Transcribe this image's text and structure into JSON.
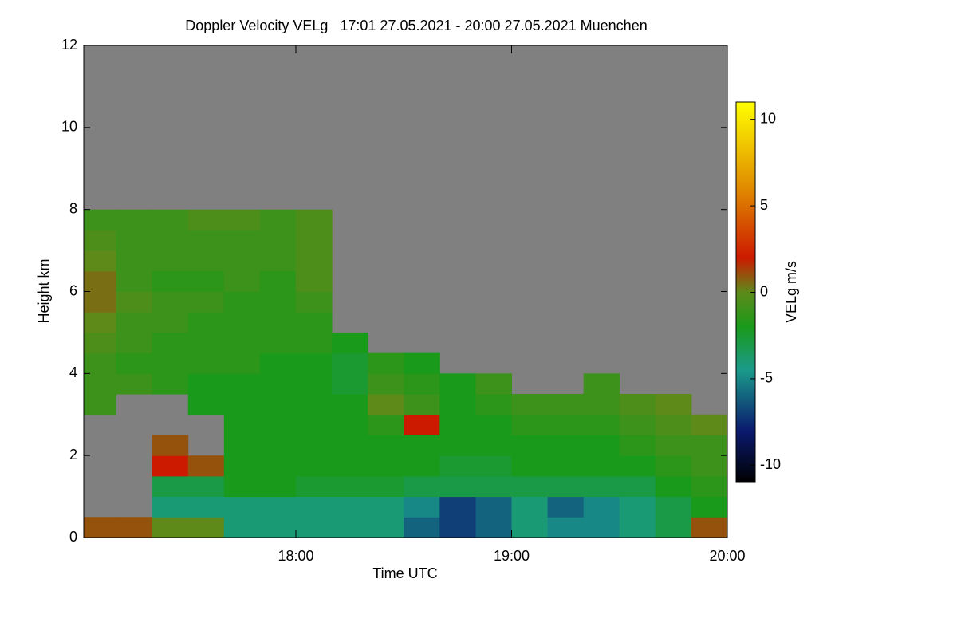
{
  "chart_data": {
    "type": "heatmap",
    "title": "Doppler Velocity VELg   17:01 27.05.2021 - 20:00 27.05.2021 Muenchen",
    "x_label": "Time UTC",
    "y_label": "Height km",
    "xlim": [
      17.0167,
      20.0
    ],
    "xticks": [
      {
        "value": 18,
        "label": "18:00"
      },
      {
        "value": 19,
        "label": "19:00"
      },
      {
        "value": 20,
        "label": "20:00"
      }
    ],
    "ylim": [
      0,
      12
    ],
    "yticks": [
      0,
      2,
      4,
      6,
      8,
      10,
      12
    ],
    "x": [
      17.0833,
      17.25,
      17.4167,
      17.5833,
      17.75,
      17.9167,
      18.0833,
      18.25,
      18.4167,
      18.5833,
      18.75,
      18.9167,
      19.0833,
      19.25,
      19.4167,
      19.5833,
      19.75,
      19.9167
    ],
    "y": [
      0.25,
      0.75,
      1.25,
      1.75,
      2.25,
      2.75,
      3.25,
      3.75,
      4.25,
      4.75,
      5.25,
      5.75,
      6.25,
      6.75,
      7.25,
      7.75,
      8.25
    ],
    "values": [
      [
        1,
        null,
        null,
        null,
        null,
        null,
        -1,
        -1,
        -1,
        -0.5,
        0,
        0.5,
        0.5,
        0,
        -0.5,
        -1,
        null
      ],
      [
        1,
        null,
        null,
        null,
        null,
        null,
        null,
        -1,
        -1.5,
        -1,
        -1,
        -0.5,
        -1,
        -1,
        -1,
        -1,
        null
      ],
      [
        0,
        -4,
        -3,
        2,
        1,
        null,
        null,
        -1.5,
        -1.5,
        -1.5,
        -1,
        -1,
        -1.5,
        -1,
        -1,
        -1,
        null
      ],
      [
        0,
        -4,
        -3,
        1,
        null,
        null,
        -2,
        -2,
        -1.5,
        -1.5,
        -1.5,
        -1,
        -1.5,
        -1,
        -1,
        -0.5,
        null
      ],
      [
        -4,
        -4,
        -2,
        -2,
        -2,
        -2,
        -2,
        -2,
        -1.5,
        -1.5,
        -1.5,
        -1.5,
        -1,
        -1,
        -1,
        -0.5,
        null
      ],
      [
        -4,
        -4,
        -2,
        -2,
        -2,
        -2,
        -2,
        -2,
        -2,
        -1.5,
        -1.5,
        -1.5,
        -1.5,
        -1,
        -1,
        -1,
        null
      ],
      [
        -4,
        -4,
        -2.5,
        -2,
        -2,
        -2,
        -2,
        -2,
        -2,
        -1.5,
        -1.5,
        -1,
        -0.5,
        -0.5,
        -0.5,
        -0.5,
        null
      ],
      [
        -4,
        -4,
        -2.5,
        -2,
        -2,
        -2,
        -2,
        -2.5,
        -2.5,
        -2,
        null,
        null,
        null,
        null,
        null,
        null,
        null
      ],
      [
        -4,
        -4,
        -2.5,
        -2,
        -2,
        -1.5,
        0,
        -1,
        -1.5,
        null,
        null,
        null,
        null,
        null,
        null,
        null,
        null
      ],
      [
        -6,
        -5,
        -3,
        -2,
        -2,
        2,
        -1,
        -1.5,
        -2,
        null,
        null,
        null,
        null,
        null,
        null,
        null,
        null
      ],
      [
        -7,
        -7,
        -3,
        -2.5,
        -2,
        -2,
        -2,
        -2,
        null,
        null,
        null,
        null,
        null,
        null,
        null,
        null,
        null
      ],
      [
        -6,
        -6,
        -3,
        -2.5,
        -2,
        -2,
        -1.5,
        -1,
        null,
        null,
        null,
        null,
        null,
        null,
        null,
        null,
        null
      ],
      [
        -4,
        -4,
        -3,
        -2,
        -2,
        -1.5,
        -1,
        null,
        null,
        null,
        null,
        null,
        null,
        null,
        null,
        null,
        null
      ],
      [
        -5,
        -6,
        -3,
        -2,
        -2,
        -1.5,
        -1,
        null,
        null,
        null,
        null,
        null,
        null,
        null,
        null,
        null,
        null
      ],
      [
        -5,
        -5,
        -3,
        -2,
        -2,
        -1.5,
        -1,
        -1,
        null,
        null,
        null,
        null,
        null,
        null,
        null,
        null,
        null
      ],
      [
        -4,
        -4,
        -3,
        -2,
        -1.5,
        -1,
        -0.5,
        null,
        null,
        null,
        null,
        null,
        null,
        null,
        null,
        null,
        null
      ],
      [
        -3,
        -3,
        -2,
        -1.5,
        -1,
        -0.5,
        0,
        null,
        null,
        null,
        null,
        null,
        null,
        null,
        null,
        null,
        null
      ],
      [
        1,
        -2,
        -1.5,
        -1,
        -1,
        0,
        null,
        null,
        null,
        null,
        null,
        null,
        null,
        null,
        null,
        null,
        null
      ]
    ],
    "missing_color": "#808080",
    "colorbar": {
      "label": "VELg m/s",
      "lim": [
        -11,
        11
      ],
      "ticks": [
        -10,
        -5,
        0,
        5,
        10
      ],
      "colorscale": [
        [
          -11,
          "#000000"
        ],
        [
          -8,
          "#0a1a6e"
        ],
        [
          -4.5,
          "#1a9a8a"
        ],
        [
          -2,
          "#1a9a1a"
        ],
        [
          0,
          "#5e8a1a"
        ],
        [
          2,
          "#cc1a00"
        ],
        [
          6,
          "#e08a00"
        ],
        [
          11,
          "#ffff00"
        ]
      ]
    }
  }
}
